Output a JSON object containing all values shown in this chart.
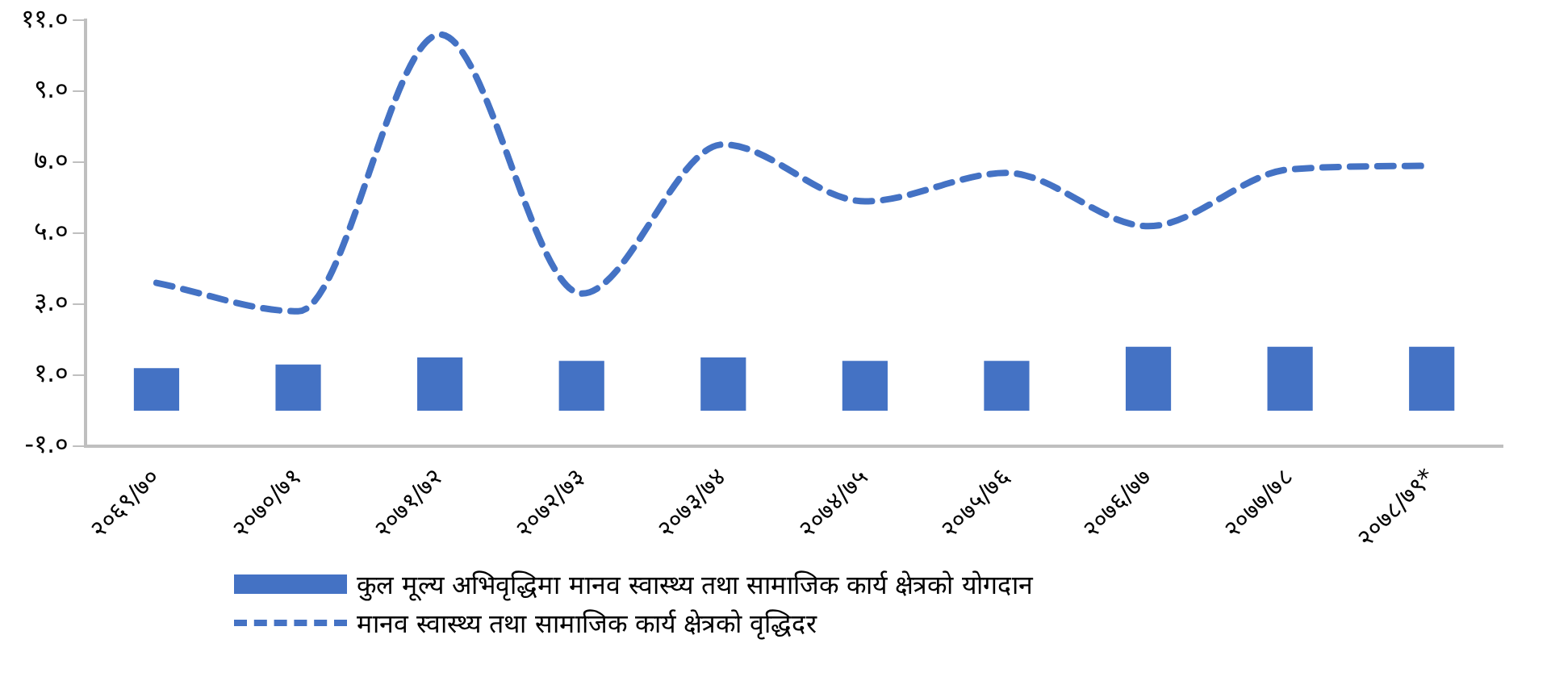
{
  "chart_data": {
    "type": "bar",
    "categories": [
      "२०६९/७०",
      "२०७०/७१",
      "२०७१/७२",
      "२०७२/७३",
      "२०७३/७४",
      "२०७४/७५",
      "२०७५/७६",
      "२०७६/७७",
      "२०७७/७८",
      "२०७८/७९*"
    ],
    "series": [
      {
        "name": "कुल मूल्य अभिवृद्धिमा मानव स्वास्थ्य तथा सामाजिक कार्य क्षेत्रको योगदान",
        "color": "#4472c4",
        "values": [
          1.2,
          1.3,
          1.5,
          1.4,
          1.5,
          1.4,
          1.4,
          1.8,
          1.8,
          1.8
        ]
      },
      {
        "name": "मानव स्वास्थ्य तथा सामाजिक कार्य क्षेत्रको वृद्धिदर",
        "type": "line",
        "color": "#4472c4",
        "line_style": "dashed",
        "marker": "none",
        "values": [
          3.6,
          2.8,
          10.6,
          3.3,
          7.5,
          5.9,
          6.7,
          5.2,
          6.8,
          6.9
        ]
      }
    ],
    "ylim": [
      -1,
      11
    ],
    "yticks": [
      {
        "value": -1,
        "label": "-१.०"
      },
      {
        "value": 1,
        "label": "१.०"
      },
      {
        "value": 3,
        "label": "३.०"
      },
      {
        "value": 5,
        "label": "५.०"
      },
      {
        "value": 7,
        "label": "७.०"
      },
      {
        "value": 9,
        "label": "९.०"
      },
      {
        "value": 11,
        "label": "११.०"
      }
    ],
    "grid": false,
    "legend": "bottom"
  }
}
